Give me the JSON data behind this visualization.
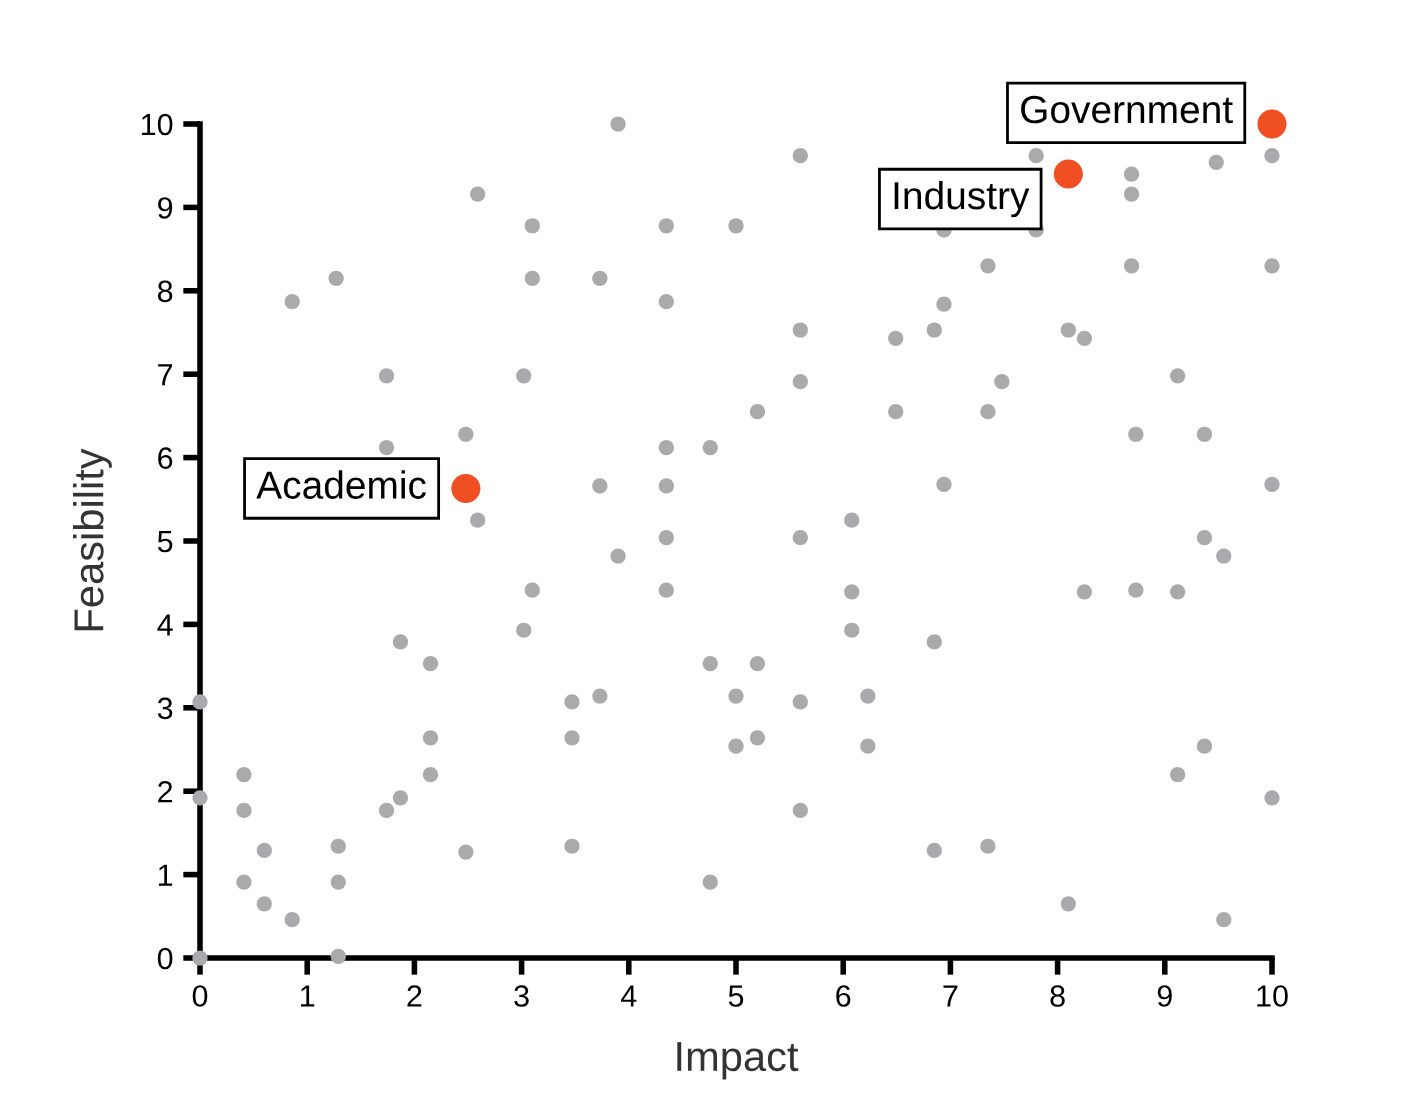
{
  "chart_data": {
    "type": "scatter",
    "xlabel": "Impact",
    "ylabel": "Feasibility",
    "xlim": [
      0,
      10
    ],
    "ylim": [
      0,
      10
    ],
    "xticks": [
      0,
      1,
      2,
      3,
      4,
      5,
      6,
      7,
      8,
      9,
      10
    ],
    "yticks": [
      0,
      1,
      2,
      3,
      4,
      5,
      6,
      7,
      8,
      9,
      10
    ],
    "grid": false,
    "marker": "circle",
    "series": [
      {
        "color": "#aaaaad",
        "x": [
          0,
          0,
          0,
          0.41,
          0.41,
          0.41,
          0.6,
          0.6,
          0.86,
          0.86,
          1.27,
          1.29,
          1.29,
          1.29,
          1.74,
          1.74,
          1.74,
          1.87,
          1.87,
          2.15,
          2.15,
          2.15,
          2.48,
          2.48,
          2.59,
          2.59,
          3.02,
          3.02,
          3.1,
          3.1,
          3.1,
          3.47,
          3.47,
          3.47,
          3.73,
          3.73,
          3.73,
          3.9,
          3.9,
          4.35,
          4.35,
          4.35,
          4.35,
          4.35,
          4.35,
          4.76,
          4.76,
          4.76,
          5.0,
          5.0,
          5.0,
          5.2,
          5.2,
          5.2,
          5.6,
          5.6,
          5.6,
          5.6,
          5.6,
          5.6,
          6.08,
          6.08,
          6.08,
          6.23,
          6.23,
          6.49,
          6.49,
          6.85,
          6.85,
          6.85,
          6.94,
          6.94,
          6.94,
          7.35,
          7.35,
          7.35,
          7.48,
          7.8,
          7.8,
          8.1,
          8.1,
          8.25,
          8.25,
          8.69,
          8.69,
          8.69,
          8.73,
          8.73,
          9.12,
          9.12,
          9.12,
          9.48,
          9.37,
          9.37,
          9.37,
          9.55,
          9.55,
          10,
          10,
          10,
          10
        ],
        "values": [
          3.07,
          1.92,
          0,
          2.2,
          1.77,
          0.91,
          1.29,
          0.65,
          0.46,
          7.87,
          8.15,
          1.34,
          0.91,
          0.02,
          6.98,
          6.12,
          1.77,
          3.79,
          1.92,
          3.53,
          2.64,
          2.2,
          6.28,
          1.27,
          9.16,
          5.25,
          6.98,
          3.93,
          8.78,
          8.15,
          4.41,
          3.07,
          2.64,
          1.34,
          8.15,
          5.66,
          3.14,
          10.0,
          4.82,
          8.78,
          7.87,
          6.12,
          5.66,
          5.04,
          4.41,
          6.12,
          3.53,
          0.91,
          8.78,
          3.14,
          2.54,
          3.53,
          2.64,
          6.55,
          9.62,
          7.53,
          6.91,
          5.04,
          3.07,
          1.77,
          5.25,
          4.39,
          3.93,
          3.14,
          2.54,
          6.55,
          7.43,
          7.53,
          3.79,
          1.29,
          8.73,
          7.84,
          5.68,
          8.3,
          6.55,
          1.34,
          6.91,
          9.62,
          8.73,
          7.53,
          0.65,
          7.43,
          4.39,
          9.4,
          9.16,
          8.3,
          6.28,
          4.41,
          6.98,
          4.39,
          2.2,
          9.54,
          6.28,
          5.04,
          2.54,
          4.82,
          0.46,
          9.62,
          8.3,
          5.68,
          1.92
        ]
      },
      {
        "color": "#f04e23",
        "x": [
          2.48,
          8.1,
          10
        ],
        "values": [
          5.63,
          9.4,
          10
        ]
      }
    ],
    "annotations": [
      {
        "text": "Academic",
        "x": 2.48,
        "y": 5.63
      },
      {
        "text": "Industry",
        "x": 8.1,
        "y": 9.4
      },
      {
        "text": "Government",
        "x": 10,
        "y": 10
      }
    ]
  }
}
